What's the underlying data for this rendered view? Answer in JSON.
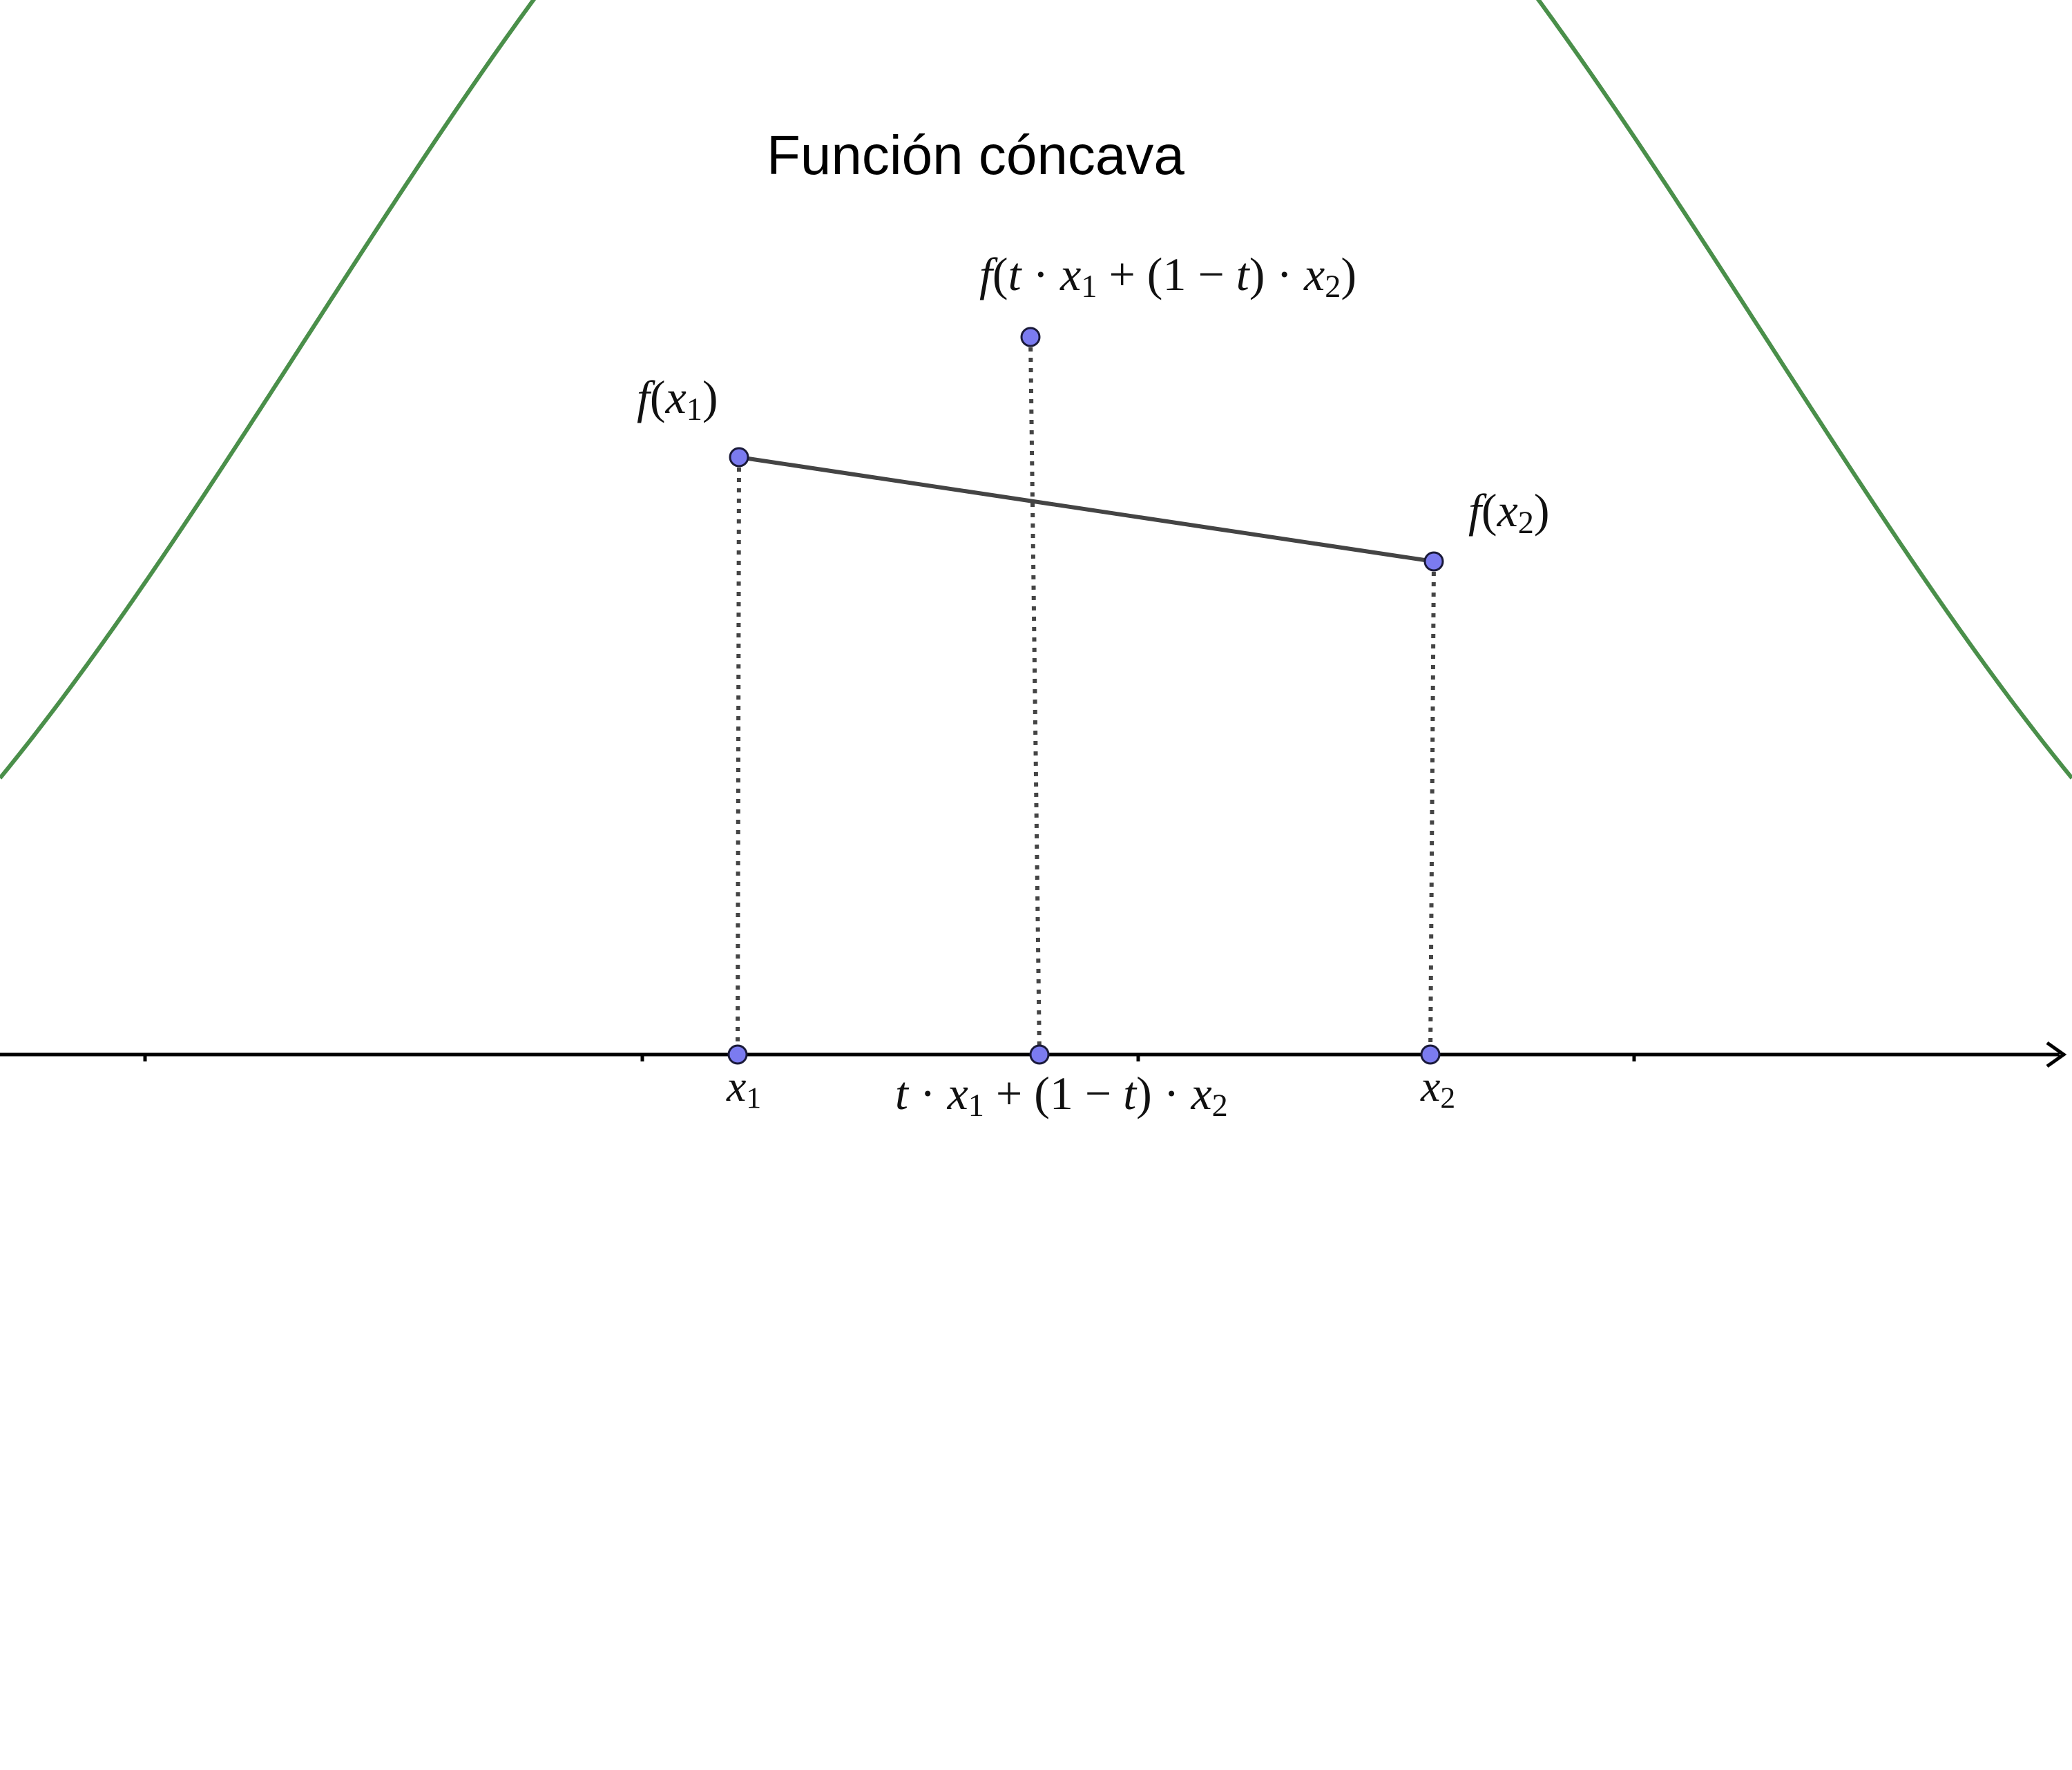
{
  "title": "Función cóncava",
  "colors": {
    "curve": "#4a8f4a",
    "chord": "#444444",
    "guide": "#444444",
    "axis": "#000000",
    "point_fill": "#7b7bf0",
    "point_stroke": "#1a1a3a"
  },
  "labels": {
    "fx1": {
      "f": "f",
      "open": "(",
      "x": "x",
      "sub": "1",
      "close": ")"
    },
    "fx2": {
      "f": "f",
      "open": "(",
      "x": "x",
      "sub": "2",
      "close": ")"
    },
    "fmid": {
      "f": "f",
      "open": "(",
      "t": "t",
      "dot1": " · ",
      "x1": "x",
      "sub1": "1",
      "plus": " + (",
      "one": "1",
      "minus": " − ",
      "t2": "t",
      "close1": ")",
      "dot2": " · ",
      "x2": "x",
      "sub2": "2",
      "close2": ")"
    },
    "x1": {
      "x": "x",
      "sub": "1"
    },
    "x2": {
      "x": "x",
      "sub": "2"
    },
    "xmid": {
      "t": "t",
      "dot1": " · ",
      "x1": "x",
      "sub1": "1",
      "plus": " + (",
      "one": "1",
      "minus": " − ",
      "t2": "t",
      "close": ")",
      "dot2": " · ",
      "x2": "x",
      "sub2": "2"
    }
  },
  "icons": {
    "axis_arrow": "arrow-right-icon",
    "point": "point-marker-icon"
  }
}
